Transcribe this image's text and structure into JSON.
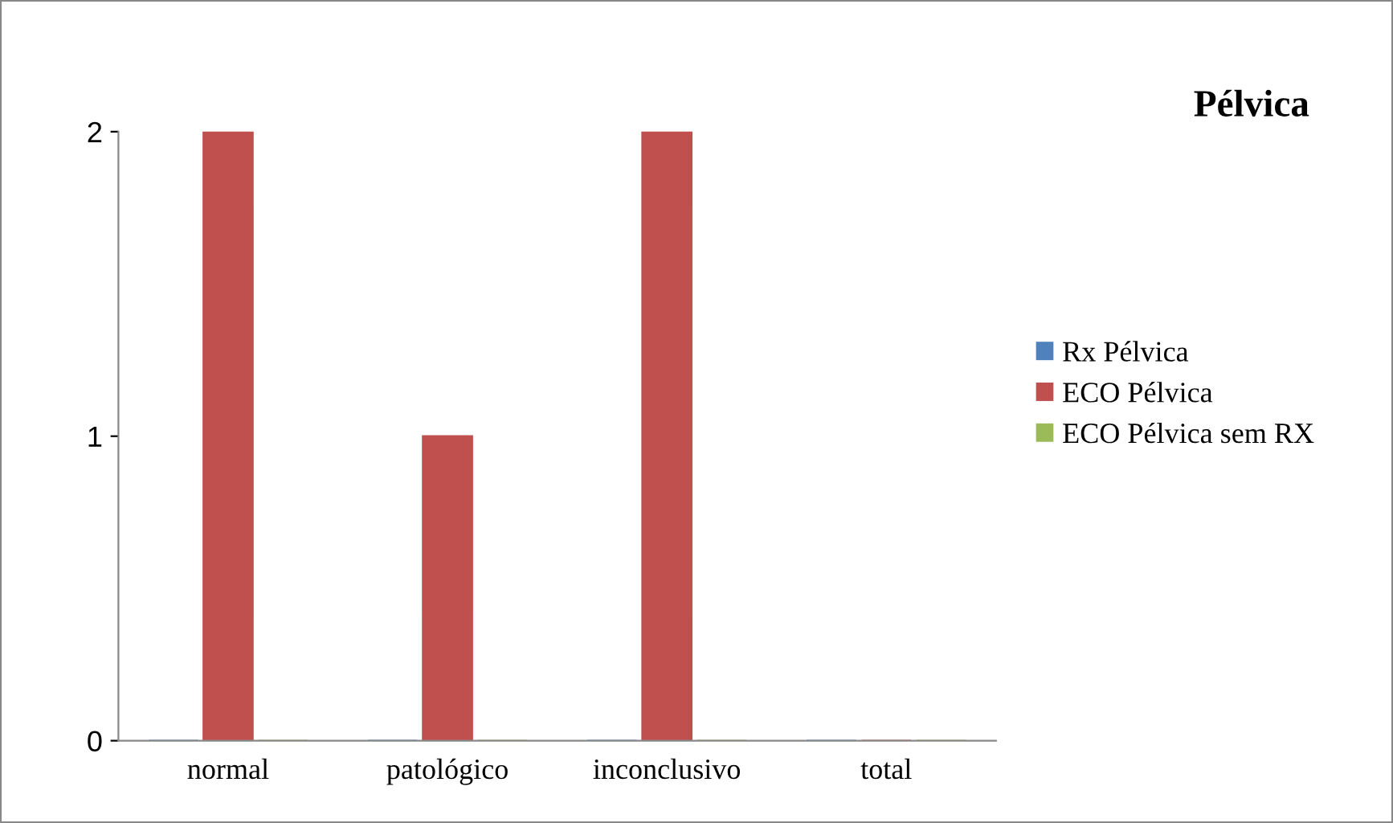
{
  "chart_data": {
    "type": "bar",
    "title": "Pélvica",
    "categories": [
      "normal",
      "patológico",
      "inconclusivo",
      "total"
    ],
    "series": [
      {
        "name": "Rx Pélvica",
        "color": "#4f81bd",
        "values": [
          0,
          0,
          0,
          0
        ]
      },
      {
        "name": "ECO Pélvica",
        "color": "#c0504d",
        "values": [
          2,
          1,
          2,
          0
        ]
      },
      {
        "name": "ECO Pélvica sem RX",
        "color": "#9bbb59",
        "values": [
          0,
          0,
          0,
          0
        ]
      }
    ],
    "ylim": [
      0,
      2
    ],
    "yticks": [
      0,
      1,
      2
    ],
    "grid": false,
    "legend": "right"
  }
}
